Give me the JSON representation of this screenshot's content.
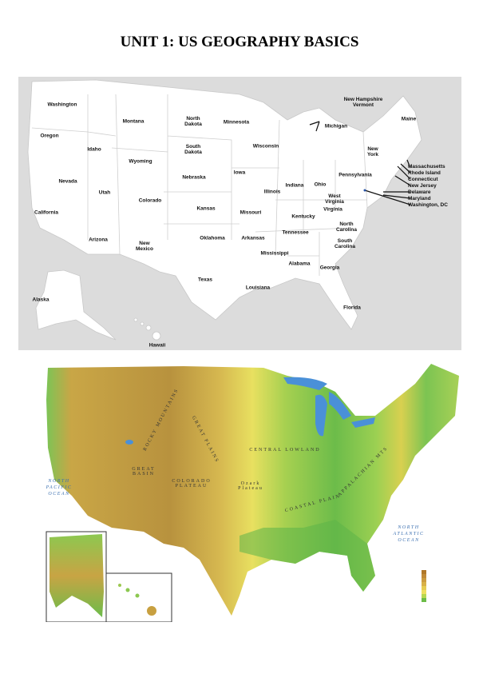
{
  "title": "UNIT 1: US GEOGRAPHY BASICS",
  "political_map": {
    "states": [
      {
        "name": "Washington"
      },
      {
        "name": "Oregon"
      },
      {
        "name": "Idaho"
      },
      {
        "name": "Montana"
      },
      {
        "name": "North\nDakota"
      },
      {
        "name": "South\nDakota"
      },
      {
        "name": "Wyoming"
      },
      {
        "name": "Nevada"
      },
      {
        "name": "Utah"
      },
      {
        "name": "Colorado"
      },
      {
        "name": "Nebraska"
      },
      {
        "name": "Iowa"
      },
      {
        "name": "Kansas"
      },
      {
        "name": "California"
      },
      {
        "name": "Arizona"
      },
      {
        "name": "New\nMexico"
      },
      {
        "name": "Oklahoma"
      },
      {
        "name": "Texas"
      },
      {
        "name": "Alaska"
      },
      {
        "name": "Hawaii"
      },
      {
        "name": "Minnesota"
      },
      {
        "name": "Wisconsin"
      },
      {
        "name": "Michigan"
      },
      {
        "name": "Illinois"
      },
      {
        "name": "Missouri"
      },
      {
        "name": "Arkansas"
      },
      {
        "name": "Louisiana"
      },
      {
        "name": "Mississippi"
      },
      {
        "name": "Alabama"
      },
      {
        "name": "Tennessee"
      },
      {
        "name": "Kentucky"
      },
      {
        "name": "Indiana"
      },
      {
        "name": "Ohio"
      },
      {
        "name": "Pennsylvania"
      },
      {
        "name": "West\nVirginia"
      },
      {
        "name": "Virginia"
      },
      {
        "name": "North\nCarolina"
      },
      {
        "name": "South\nCarolina"
      },
      {
        "name": "Georgia"
      },
      {
        "name": "Florida"
      },
      {
        "name": "New\nYork"
      },
      {
        "name": "Maine"
      },
      {
        "name": "New Hampshire\nVermont"
      }
    ],
    "northeast_list": [
      "Massachusetts",
      "Rhode Island",
      "Connecticut",
      "New Jersey",
      "Delaware",
      "Maryland",
      "Washington, DC"
    ]
  },
  "physical_map": {
    "regions": [
      "ROCKY MOUNTAINS",
      "GREAT PLAINS",
      "GREAT\nBASIN",
      "COLORADO\nPLATEAU",
      "CENTRAL LOWLAND",
      "APPALACHIAN MTS",
      "COASTAL PLAIN",
      "Ozark\nPlateau"
    ],
    "oceans": [
      "NORTH\nPACIFIC\nOCEAN",
      "NORTH\nATLANTIC\nOCEAN"
    ],
    "legend_colors": [
      "#b0782a",
      "#c08a38",
      "#cc9c40",
      "#d8b048",
      "#e6cc52",
      "#eee060",
      "#b8d850",
      "#6cbc48"
    ]
  }
}
